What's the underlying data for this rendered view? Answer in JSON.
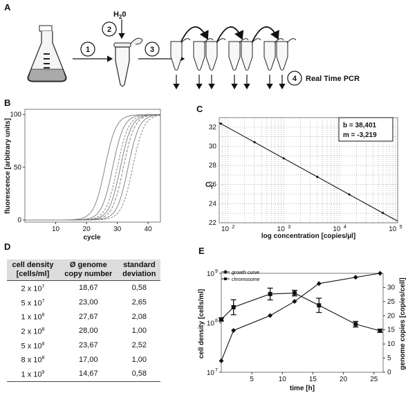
{
  "panels": {
    "a": "A",
    "b": "B",
    "c": "C",
    "d": "D",
    "e": "E"
  },
  "panel_a": {
    "steps": [
      "1",
      "2",
      "3",
      "4"
    ],
    "water_label": "H",
    "water_sub": "2",
    "water_suffix": "0",
    "pcr_label": "Real Time PCR"
  },
  "chart_data": [
    {
      "id": "B",
      "type": "line",
      "xlabel": "cycle",
      "ylabel": "fluorescence [arbitrary units]",
      "xlim": [
        0,
        44
      ],
      "ylim": [
        -2,
        105
      ],
      "xticks": [
        "10",
        "20",
        "30",
        "40"
      ],
      "yticks": [
        "0",
        "50",
        "100"
      ],
      "grid": false,
      "curve_midpoints": [
        26,
        28.5,
        30,
        31,
        32,
        33.5,
        35
      ],
      "curve_plateau": 100,
      "curve_slope": 0.55
    },
    {
      "id": "C",
      "type": "scatter",
      "xlabel": "log concentration [copies/µl]",
      "ylabel": "C",
      "ylabel_sub": "T",
      "xscale": "log",
      "xlim": [
        70,
        110000
      ],
      "ylim": [
        22,
        33
      ],
      "xticks": [
        "10",
        "10",
        "10",
        "10"
      ],
      "xtick_exp": [
        "2",
        "3",
        "4",
        "5"
      ],
      "yticks": [
        "22",
        "24",
        "26",
        "28",
        "30",
        "32"
      ],
      "grid": true,
      "fit_b": 38.401,
      "fit_m": -3.219,
      "annotation_b": "b = 38,401",
      "annotation_m": "m = -3,219",
      "points_x": [
        75,
        300,
        1000,
        4000,
        15000,
        60000
      ]
    },
    {
      "id": "E",
      "type": "line",
      "xlabel": "time [h]",
      "ylabel_left": "cell density [cells/ml]",
      "ylabel_right": "genome copies [copies/cell]",
      "xlim": [
        0,
        26.5
      ],
      "ylim_left": [
        10000000,
        1000000000
      ],
      "yscale_left": "log",
      "ylim_right": [
        0,
        35
      ],
      "xticks": [
        "5",
        "10",
        "15",
        "20",
        "25"
      ],
      "yticks_left": [
        "10",
        "10",
        "10"
      ],
      "ytick_left_exp": [
        "7",
        "8",
        "9"
      ],
      "yticks_right": [
        "0",
        "5",
        "10",
        "15",
        "20",
        "25",
        "30"
      ],
      "series": [
        {
          "name": "growth curve",
          "axis": "left",
          "x": [
            0,
            2,
            8,
            12,
            16,
            22,
            26
          ],
          "y": [
            17000000,
            70000000,
            140000000,
            270000000,
            620000000,
            830000000,
            1000000000
          ]
        },
        {
          "name": "chromosome",
          "axis": "right",
          "x": [
            0,
            2,
            8,
            12,
            16,
            22,
            26
          ],
          "y": [
            18.67,
            23.0,
            27.67,
            28.0,
            23.67,
            17.0,
            14.67
          ],
          "err": [
            0.58,
            2.65,
            2.08,
            1.0,
            2.52,
            1.0,
            0.58
          ]
        }
      ]
    }
  ],
  "table_d": {
    "headers": [
      [
        "cell density",
        "[cells/ml]"
      ],
      [
        "Ø genome",
        "copy number"
      ],
      [
        "standard",
        "deviation"
      ]
    ],
    "rows": [
      {
        "base": "2 x 10",
        "exp": "7",
        "copies": "18,67",
        "sd": "0,58"
      },
      {
        "base": "5 x 10",
        "exp": "7",
        "copies": "23,00",
        "sd": "2,65"
      },
      {
        "base": "1 x 10",
        "exp": "8",
        "copies": "27,67",
        "sd": "2,08"
      },
      {
        "base": "2 x 10",
        "exp": "8",
        "copies": "28,00",
        "sd": "1,00"
      },
      {
        "base": "5 x 10",
        "exp": "8",
        "copies": "23,67",
        "sd": "2,52"
      },
      {
        "base": "8 x 10",
        "exp": "8",
        "copies": "17,00",
        "sd": "1,00"
      },
      {
        "base": "1 x 10",
        "exp": "9",
        "copies": "14,67",
        "sd": "0,58"
      }
    ]
  }
}
